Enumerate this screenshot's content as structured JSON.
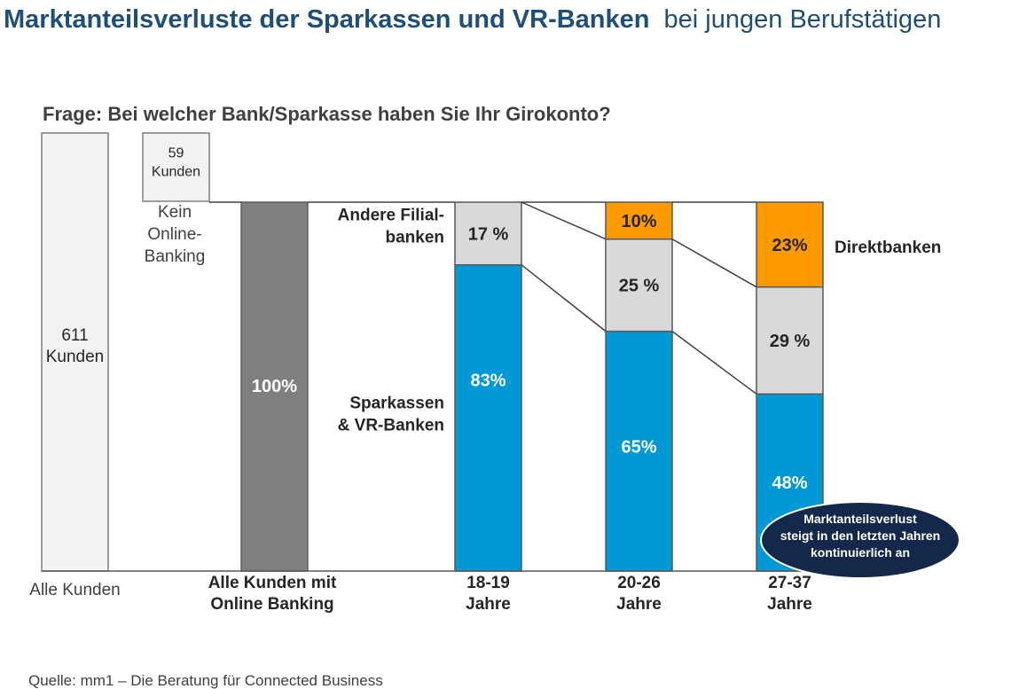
{
  "chart_data": {
    "type": "bar",
    "title": "Marktanteilsverluste der Sparkassen und VR-Banken",
    "title_suffix": "bei jungen Berufstätigen",
    "subtitle": "Frage: Bei welcher Bank/Sparkasse haben Sie Ihr Girokonto?",
    "source": "Quelle: mm1 – Die Beratung für Connected Business",
    "colors": {
      "all_customers": "#f2f2f2",
      "online_total": "#7f7f7f",
      "sparkassen": "#0099d6",
      "filialbanken": "#d9d9d9",
      "direktbanken": "#ff9900",
      "callout": "#14284b"
    },
    "funnel": {
      "all_customers": {
        "value": 611,
        "label_lines": [
          "611",
          "Kunden"
        ],
        "category_lines": [
          "Alle Kunden"
        ]
      },
      "no_online": {
        "value": 59,
        "label_lines": [
          "59",
          "Kunden"
        ],
        "caption_lines": [
          "Kein",
          "Online-",
          "Banking"
        ]
      },
      "online_total": {
        "value": 100,
        "label": "100%",
        "category_lines": [
          "Alle Kunden mit",
          "Online Banking"
        ]
      }
    },
    "categories": [
      {
        "label_lines": [
          "18-19",
          "Jahre"
        ]
      },
      {
        "label_lines": [
          "20-26",
          "Jahre"
        ]
      },
      {
        "label_lines": [
          "27-37",
          "Jahre"
        ]
      }
    ],
    "series": [
      {
        "key": "sparkassen",
        "name_lines": [
          "Sparkassen",
          "& VR-Banken"
        ],
        "values": [
          83,
          65,
          48
        ],
        "labels": [
          "83%",
          "65%",
          "48%"
        ]
      },
      {
        "key": "filialbanken",
        "name_lines": [
          "Andere Filial-",
          "banken"
        ],
        "values": [
          17,
          25,
          29
        ],
        "labels": [
          "17 %",
          "25 %",
          "29 %"
        ]
      },
      {
        "key": "direktbanken",
        "name_lines": [
          "Direktbanken"
        ],
        "values": [
          0,
          10,
          23
        ],
        "labels": [
          "",
          "10%",
          "23%"
        ]
      }
    ],
    "callout_lines": [
      "Marktanteilsverlust",
      "steigt in den letzten Jahren",
      "kontinuierlich an"
    ]
  }
}
